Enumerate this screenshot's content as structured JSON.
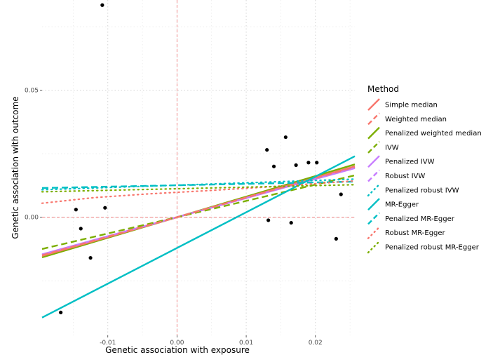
{
  "chart_data": {
    "type": "scatter",
    "xlabel": "Genetic association with exposure",
    "ylabel": "Genetic association with outcome",
    "xlim": [
      -0.0195,
      0.0257
    ],
    "ylim": [
      -0.0465,
      0.0855
    ],
    "x_ticks": [
      {
        "value": -0.01,
        "label": "-0.01"
      },
      {
        "value": 0.0,
        "label": "0.00"
      },
      {
        "value": 0.01,
        "label": "0.01"
      },
      {
        "value": 0.02,
        "label": "0.02"
      }
    ],
    "y_ticks": [
      {
        "value": 0.0,
        "label": "0.00"
      },
      {
        "value": 0.05,
        "label": "0.05"
      }
    ],
    "grid": true,
    "reference_lines": {
      "x": 0,
      "y": 0,
      "color": "#f08080"
    },
    "points": [
      {
        "x": -0.0108,
        "y": 0.0835
      },
      {
        "x": -0.0168,
        "y": -0.0375
      },
      {
        "x": -0.0146,
        "y": 0.003
      },
      {
        "x": -0.0139,
        "y": -0.0045
      },
      {
        "x": -0.0125,
        "y": -0.016
      },
      {
        "x": -0.0104,
        "y": 0.0037
      },
      {
        "x": 0.013,
        "y": 0.0265
      },
      {
        "x": 0.0132,
        "y": -0.0012
      },
      {
        "x": 0.014,
        "y": 0.02
      },
      {
        "x": 0.0157,
        "y": 0.0315
      },
      {
        "x": 0.0165,
        "y": -0.0022
      },
      {
        "x": 0.0172,
        "y": 0.0205
      },
      {
        "x": 0.019,
        "y": 0.0215
      },
      {
        "x": 0.0202,
        "y": 0.0215
      },
      {
        "x": 0.023,
        "y": -0.0085
      },
      {
        "x": 0.0237,
        "y": 0.009
      }
    ],
    "legend": {
      "title": "Method",
      "position": "right",
      "entries": [
        {
          "name": "Simple median",
          "color": "#F8766D",
          "style": "solid"
        },
        {
          "name": "Weighted median",
          "color": "#F8766D",
          "style": "dashed"
        },
        {
          "name": "Penalized weighted median",
          "color": "#7CAE00",
          "style": "solid"
        },
        {
          "name": "IVW",
          "color": "#7CAE00",
          "style": "dashed"
        },
        {
          "name": "Penalized IVW",
          "color": "#C77CFF",
          "style": "solid"
        },
        {
          "name": "Robust IVW",
          "color": "#C77CFF",
          "style": "dashed"
        },
        {
          "name": "Penalized robust IVW",
          "color": "#00BFC4",
          "style": "dotted"
        },
        {
          "name": "MR-Egger",
          "color": "#00BFC4",
          "style": "solid"
        },
        {
          "name": "Penalized MR-Egger",
          "color": "#00BFC4",
          "style": "dashed"
        },
        {
          "name": "Robust MR-Egger",
          "color": "#F8766D",
          "style": "dotted"
        },
        {
          "name": "Penalized robust MR-Egger",
          "color": "#7CAE00",
          "style": "dotted"
        }
      ]
    },
    "fit_lines": [
      {
        "name": "Penalized weighted median",
        "color": "#7CAE00",
        "style": "solid",
        "curve": false,
        "x": [
          -0.0195,
          0.0257
        ],
        "y": [
          -0.0158,
          0.0208
        ]
      },
      {
        "name": "Simple median",
        "color": "#F8766D",
        "style": "solid",
        "curve": false,
        "x": [
          -0.0195,
          0.0257
        ],
        "y": [
          -0.0152,
          0.02
        ]
      },
      {
        "name": "Penalized IVW",
        "color": "#C77CFF",
        "style": "solid",
        "curve": false,
        "x": [
          -0.0195,
          0.0257
        ],
        "y": [
          -0.0146,
          0.0193
        ]
      },
      {
        "name": "Robust IVW",
        "color": "#C77CFF",
        "style": "dashed",
        "curve": false,
        "x": [
          -0.0195,
          0.0257
        ],
        "y": [
          -0.0148,
          0.0195
        ]
      },
      {
        "name": "IVW",
        "color": "#7CAE00",
        "style": "dashed",
        "curve": false,
        "x": [
          -0.0195,
          0.0257
        ],
        "y": [
          -0.0125,
          0.0165
        ]
      },
      {
        "name": "Weighted median",
        "color": "#F8766D",
        "style": "dashed",
        "curve": false,
        "x": [
          -0.0195,
          0.0257
        ],
        "y": [
          -0.015,
          0.0198
        ]
      },
      {
        "name": "MR-Egger",
        "color": "#00BFC4",
        "style": "solid",
        "curve": false,
        "x": [
          -0.0195,
          0.0257
        ],
        "y": [
          -0.0395,
          0.024
        ]
      },
      {
        "name": "Penalized MR-Egger",
        "color": "#00BFC4",
        "style": "dashed",
        "curve": false,
        "x": [
          -0.0195,
          0.0257
        ],
        "y": [
          0.0115,
          0.014
        ]
      },
      {
        "name": "Penalized robust IVW",
        "color": "#00BFC4",
        "style": "dotted",
        "curve": false,
        "x": [
          -0.0195,
          0.0257
        ],
        "y": [
          0.0108,
          0.015
        ]
      },
      {
        "name": "Robust MR-Egger",
        "color": "#F8766D",
        "style": "dotted",
        "curve": true,
        "x": [
          -0.0195,
          -0.012,
          -0.004,
          0.004,
          0.012,
          0.02,
          0.0257
        ],
        "y": [
          0.0055,
          0.0077,
          0.0092,
          0.0104,
          0.0117,
          0.0132,
          0.0143
        ]
      },
      {
        "name": "Penalized robust MR-Egger",
        "color": "#7CAE00",
        "style": "dotted",
        "curve": false,
        "x": [
          -0.0195,
          0.0257
        ],
        "y": [
          0.01,
          0.0128
        ]
      }
    ]
  }
}
